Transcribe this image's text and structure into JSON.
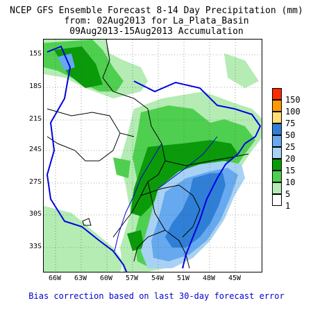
{
  "header": {
    "title_line1": "NCEP GFS Ensemble Forecast 8-14 Day Precipitation (mm)",
    "title_line2": "from: 02Aug2013  for La_Plata_Basin",
    "title_line3": "09Aug2013-15Aug2013 Accumulation"
  },
  "axes": {
    "lat_labels": [
      "15S",
      "18S",
      "21S",
      "24S",
      "27S",
      "30S",
      "33S"
    ],
    "lon_labels": [
      "66W",
      "63W",
      "60W",
      "57W",
      "54W",
      "51W",
      "48W",
      "45W"
    ]
  },
  "legend": {
    "items": [
      {
        "label": "150",
        "color": "#ff2a00"
      },
      {
        "label": "100",
        "color": "#ff9900"
      },
      {
        "label": "75",
        "color": "#ffdd77"
      },
      {
        "label": "50",
        "color": "#2f7fd6"
      },
      {
        "label": "25",
        "color": "#66a9ee"
      },
      {
        "label": "20",
        "color": "#a8d2f4"
      },
      {
        "label": "15",
        "color": "#0a9a0a"
      },
      {
        "label": "10",
        "color": "#4fcf4f"
      },
      {
        "label": "5",
        "color": "#b4ecb4"
      },
      {
        "label": "1",
        "color": "#ffffff"
      }
    ]
  },
  "footnote": "Bias correction based on last 30-day forecast error"
}
